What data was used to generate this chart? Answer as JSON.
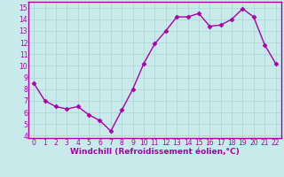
{
  "x": [
    0,
    1,
    2,
    3,
    4,
    5,
    6,
    7,
    8,
    9,
    10,
    11,
    12,
    13,
    14,
    15,
    16,
    17,
    18,
    19,
    20,
    21,
    22
  ],
  "y": [
    8.5,
    7.0,
    6.5,
    6.3,
    6.5,
    5.8,
    5.3,
    4.4,
    6.2,
    8.0,
    10.2,
    11.9,
    13.0,
    14.2,
    14.2,
    14.5,
    13.4,
    13.5,
    14.0,
    14.9,
    14.2,
    11.8,
    10.2
  ],
  "line_color": "#aa00aa",
  "marker": "D",
  "marker_size": 2.5,
  "background_color": "#c8eaea",
  "grid_color": "#b0d8d8",
  "xlabel": "Windchill (Refroidissement éolien,°C)",
  "xlabel_fontsize": 6.5,
  "xlim": [
    -0.5,
    22.5
  ],
  "ylim": [
    3.8,
    15.5
  ],
  "yticks": [
    4,
    5,
    6,
    7,
    8,
    9,
    10,
    11,
    12,
    13,
    14,
    15
  ],
  "xticks": [
    0,
    1,
    2,
    3,
    4,
    5,
    6,
    7,
    8,
    9,
    10,
    11,
    12,
    13,
    14,
    15,
    16,
    17,
    18,
    19,
    20,
    21,
    22
  ],
  "tick_fontsize": 5.5,
  "line_width": 1.0,
  "spine_color": "#aa00aa"
}
